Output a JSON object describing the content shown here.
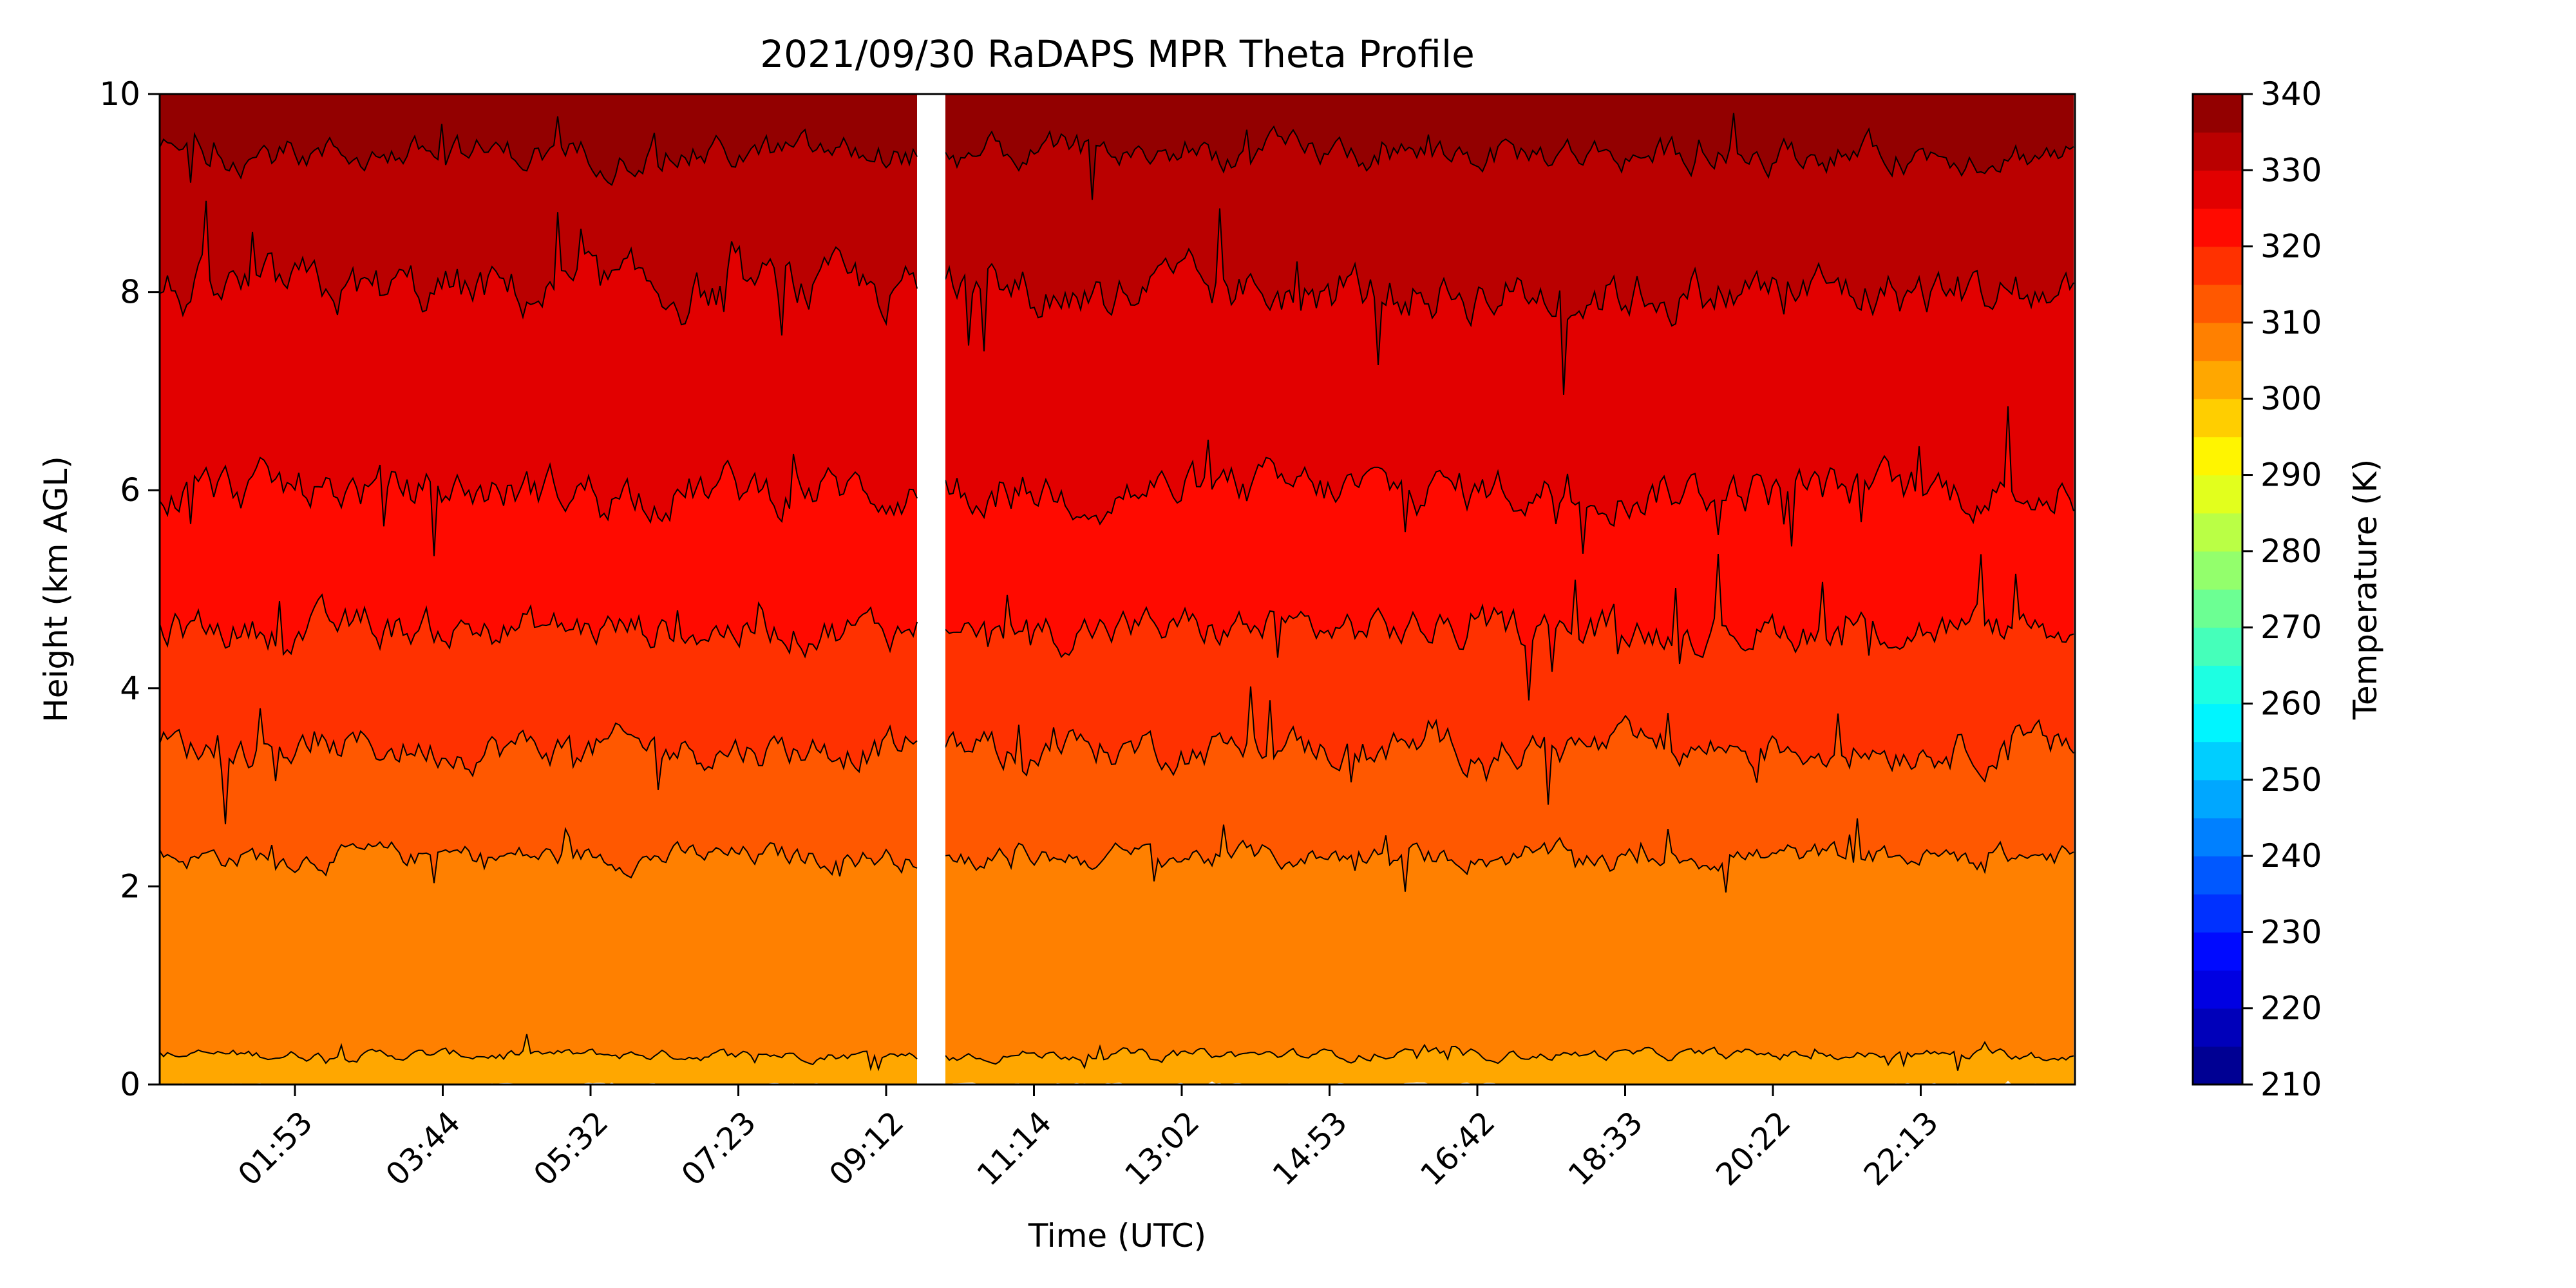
{
  "chart_data": {
    "type": "heatmap",
    "subtype": "filled contour (time-height cross-section)",
    "title": "2021/09/30 RaDAPS MPR Theta Profile",
    "xlabel": "Time (UTC)",
    "ylabel": "Height (km AGL)",
    "x_tick_labels": [
      "01:53",
      "03:44",
      "05:32",
      "07:23",
      "09:12",
      "11:14",
      "13:02",
      "14:53",
      "16:42",
      "18:33",
      "20:22",
      "22:13"
    ],
    "y_tick_labels": [
      "0",
      "2",
      "4",
      "6",
      "8",
      "10"
    ],
    "ylim": [
      0,
      10
    ],
    "colorbar": {
      "label": "Temperature (K)",
      "range": [
        210,
        340
      ],
      "step": 5,
      "tick_labels": [
        "210",
        "220",
        "230",
        "240",
        "250",
        "260",
        "270",
        "280",
        "290",
        "300",
        "310",
        "320",
        "330",
        "340"
      ],
      "colormap": "jet"
    },
    "data_gap": {
      "from_approx": "09:45",
      "to_approx": "10:30",
      "note_visible": false
    },
    "contour_levels_mean_height_km": [
      {
        "level_K": 300,
        "height_km": 0.0
      },
      {
        "level_K": 305,
        "height_km": 0.3
      },
      {
        "level_K": 310,
        "height_km": 2.3
      },
      {
        "level_K": 315,
        "height_km": 3.4
      },
      {
        "level_K": 320,
        "height_km": 4.6
      },
      {
        "level_K": 325,
        "height_km": 6.0
      },
      {
        "level_K": 330,
        "height_km": 8.0
      },
      {
        "level_K": 335,
        "height_km": 9.4
      }
    ],
    "grid": false,
    "legend": "colorbar-right"
  }
}
